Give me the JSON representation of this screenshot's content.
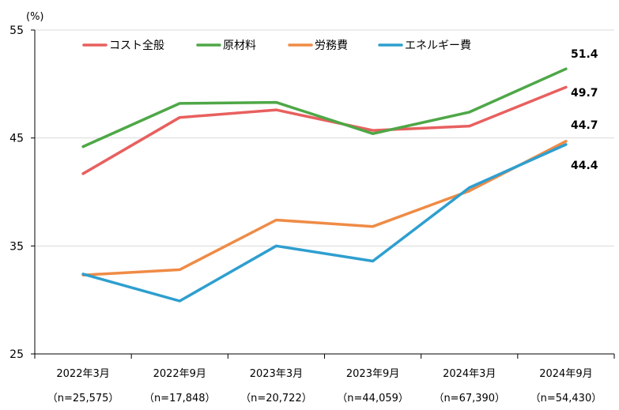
{
  "chart_data": {
    "type": "line",
    "unit_label": "(%)",
    "ylim": [
      25,
      55
    ],
    "yticks": [
      "25",
      "35",
      "45",
      "55"
    ],
    "grid": "horizontal",
    "legend_position": "top-left",
    "categories": [
      "2022年3月",
      "2022年9月",
      "2023年3月",
      "2023年9月",
      "2024年3月",
      "2024年9月"
    ],
    "category_counts": [
      "（n=25,575）",
      "（n=17,848）",
      "（n=20,722）",
      "（n=44,059）",
      "（n=67,390）",
      "（n=54,430）"
    ],
    "series": [
      {
        "name": "コスト全般",
        "color": "#e8605f",
        "values": [
          41.7,
          46.9,
          47.6,
          45.7,
          46.1,
          49.7
        ],
        "end_label": "49.7"
      },
      {
        "name": "原材料",
        "color": "#4ea747",
        "values": [
          44.2,
          48.2,
          48.3,
          45.4,
          47.4,
          51.4
        ],
        "end_label": "51.4"
      },
      {
        "name": "労務費",
        "color": "#ef8b46",
        "values": [
          32.3,
          32.8,
          37.4,
          36.8,
          40.1,
          44.7
        ],
        "end_label": "44.7"
      },
      {
        "name": "エネルギー費",
        "color": "#2e9fcf",
        "values": [
          32.4,
          29.9,
          35.0,
          33.6,
          40.4,
          44.4
        ],
        "end_label": "44.4"
      }
    ]
  }
}
